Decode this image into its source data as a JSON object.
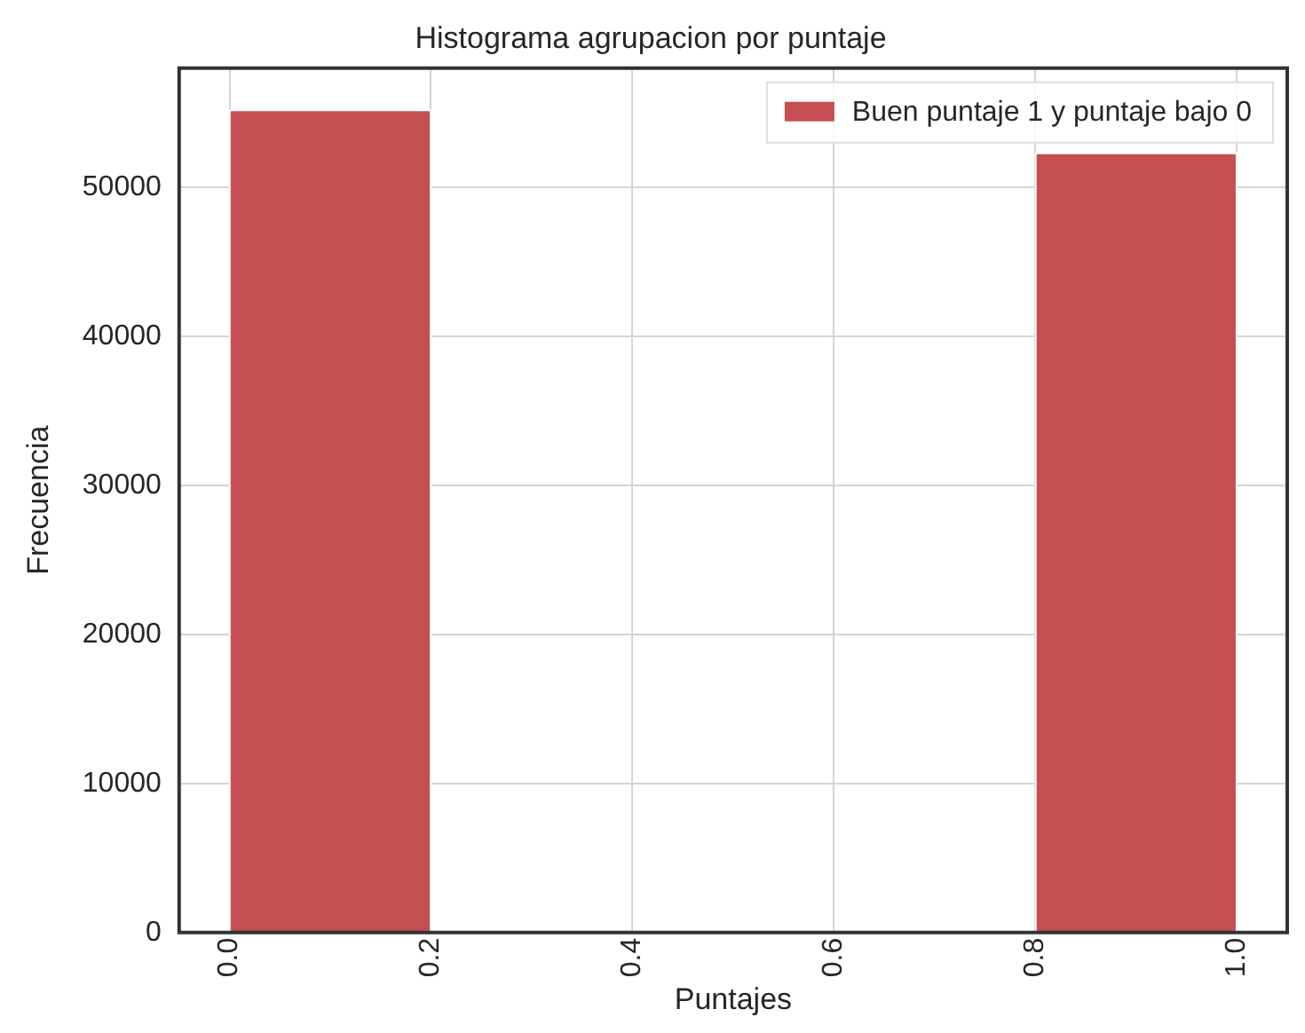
{
  "chart_data": {
    "type": "histogram",
    "title": "Histograma agrupacion por puntaje",
    "xlabel": "Puntajes",
    "ylabel": "Frecuencia",
    "bins": [
      0,
      0.2,
      0.4,
      0.6,
      0.8,
      1.0
    ],
    "series": [
      {
        "name": "Buen puntaje 1 y puntaje bajo 0",
        "color": "#c44e52",
        "values": [
          55200,
          0,
          0,
          0,
          52300
        ]
      }
    ],
    "xlim": [
      -0.05,
      1.05
    ],
    "xticks": [
      {
        "value": 0,
        "label": "0.0"
      },
      {
        "value": 0.2,
        "label": "0.2"
      },
      {
        "value": 0.4,
        "label": "0.4"
      },
      {
        "value": 0.6,
        "label": "0.6"
      },
      {
        "value": 0.8,
        "label": "0.8"
      },
      {
        "value": 1.0,
        "label": "1.0"
      }
    ],
    "ylim": [
      0,
      58000
    ],
    "yticks": [
      0,
      10000,
      20000,
      30000,
      40000,
      50000
    ],
    "grid": true,
    "legend": "top right"
  }
}
